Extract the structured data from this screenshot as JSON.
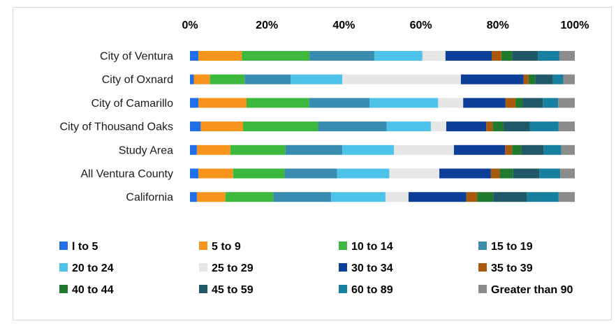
{
  "chart_data": {
    "type": "bar",
    "orientation": "horizontal",
    "stacked": "percent",
    "x_axis_position": "top",
    "xlim": [
      0,
      100
    ],
    "x_ticks": [
      "0%",
      "20%",
      "40%",
      "60%",
      "80%",
      "100%"
    ],
    "grid": false,
    "legend_position": "bottom",
    "categories": [
      "City of Ventura",
      "City of Oxnard",
      "City of Camarillo",
      "City of Thousand Oaks",
      "Study Area",
      "All Ventura County",
      "California"
    ],
    "series": [
      {
        "name": "l to 5",
        "color": "#1f6fe8",
        "values": [
          2.2,
          1.0,
          2.2,
          2.8,
          1.8,
          2.2,
          1.8
        ]
      },
      {
        "name": "5 to 9",
        "color": "#f7941d",
        "values": [
          11.3,
          4.2,
          12.5,
          11.0,
          8.7,
          9.0,
          7.4
        ]
      },
      {
        "name": "10 to 14",
        "color": "#3cb83c",
        "values": [
          17.6,
          9.0,
          16.2,
          19.5,
          14.3,
          13.4,
          12.5
        ]
      },
      {
        "name": "15 to 19",
        "color": "#3a8bb0",
        "values": [
          16.8,
          12.0,
          15.8,
          17.8,
          14.8,
          13.6,
          15.0
        ]
      },
      {
        "name": "20 to 24",
        "color": "#4dc3ea",
        "values": [
          12.5,
          13.4,
          17.8,
          11.5,
          13.4,
          13.6,
          14.1
        ]
      },
      {
        "name": "25 to 29",
        "color": "#e6e6e6",
        "values": [
          6.0,
          30.8,
          6.5,
          4.0,
          15.6,
          13.0,
          6.0
        ]
      },
      {
        "name": "30 to 34",
        "color": "#0d3f99",
        "values": [
          12.0,
          16.3,
          11.0,
          10.4,
          13.3,
          13.4,
          15.0
        ]
      },
      {
        "name": "35 to 39",
        "color": "#a85a0c",
        "values": [
          2.5,
          1.3,
          2.6,
          1.7,
          1.8,
          2.3,
          2.8
        ]
      },
      {
        "name": "40 to 44",
        "color": "#1f7a2e",
        "values": [
          2.8,
          1.8,
          1.8,
          2.8,
          2.4,
          3.5,
          4.2
        ]
      },
      {
        "name": "45 to 59",
        "color": "#215868",
        "values": [
          6.7,
          4.5,
          5.3,
          6.8,
          5.8,
          6.8,
          8.8
        ]
      },
      {
        "name": "60 to 89",
        "color": "#17809f",
        "values": [
          5.6,
          2.7,
          4.0,
          7.5,
          4.6,
          5.4,
          8.2
        ]
      },
      {
        "name": "Greater than 90",
        "color": "#8c8c8c",
        "values": [
          4.0,
          3.0,
          4.3,
          4.2,
          3.5,
          3.8,
          4.2
        ]
      }
    ]
  }
}
